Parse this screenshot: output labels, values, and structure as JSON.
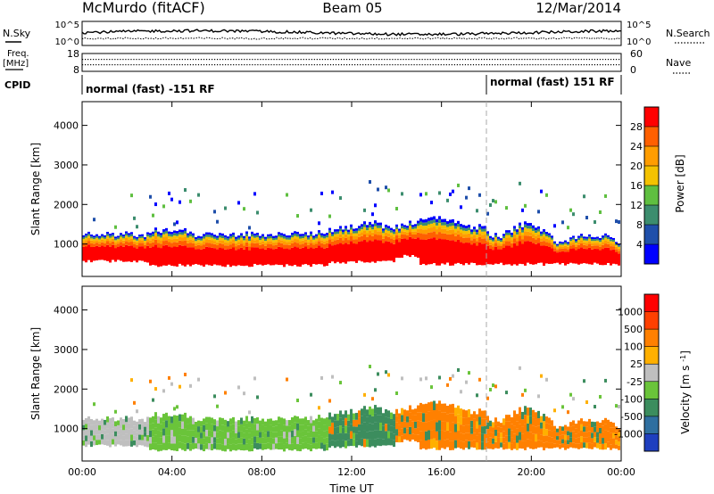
{
  "header": {
    "title": "McMurdo (fitACF)",
    "beam": "Beam 05",
    "date": "12/Mar/2014"
  },
  "nsky_panel": {
    "left_label": "N.Sky",
    "right_label": "N.Search",
    "left_ticks": [
      "10^5",
      "10^0"
    ],
    "right_ticks": [
      "10^5",
      "10^0"
    ]
  },
  "freq_panel": {
    "left_label_1": "Freq.",
    "left_label_2": "[MHz]",
    "right_label": "Nave",
    "left_ticks": [
      "18",
      "8"
    ],
    "right_ticks": [
      "60",
      "0"
    ]
  },
  "cpid_panel": {
    "label": "CPID",
    "segments": [
      {
        "text": "normal (fast) -151 RF",
        "start_hour": 0
      },
      {
        "text": "normal (fast) 151 RF",
        "start_hour": 18
      }
    ]
  },
  "colors": {
    "power_scale": [
      "#0000ff",
      "#1f4faa",
      "#3c8d6e",
      "#5fbf40",
      "#f4c200",
      "#ff9d00",
      "#ff6000",
      "#ff0000"
    ],
    "velocity_scale": [
      "#1f3fbf",
      "#2f6fa0",
      "#3c8d5e",
      "#6ac43a",
      "#bfbfbf",
      "#ffb000",
      "#ff8000",
      "#ff4000",
      "#ff0000"
    ]
  },
  "chart_data": [
    {
      "type": "heatmap",
      "name": "power",
      "ylabel": "Slant Range [km]",
      "yticks": [
        1000,
        2000,
        3000,
        4000
      ],
      "ylim": [
        180,
        4600
      ],
      "xlim": [
        0,
        24
      ],
      "colorbar": {
        "label": "Power [dB]",
        "ticks": [
          "28",
          "24",
          "20",
          "16",
          "12",
          "8",
          "4"
        ]
      }
    },
    {
      "type": "heatmap",
      "name": "velocity",
      "ylabel": "Slant Range [km]",
      "yticks": [
        1000,
        2000,
        3000,
        4000
      ],
      "ylim": [
        180,
        4600
      ],
      "xlim": [
        0,
        24
      ],
      "xlabel": "Time UT",
      "xticks": [
        "00:00",
        "04:00",
        "08:00",
        "12:00",
        "16:00",
        "20:00",
        "00:00"
      ],
      "colorbar": {
        "label": "Velocity [m s^-1]",
        "ticks": [
          "1000",
          "500",
          "100",
          "25",
          "-25",
          "-100",
          "-500",
          "-1000"
        ]
      }
    }
  ]
}
